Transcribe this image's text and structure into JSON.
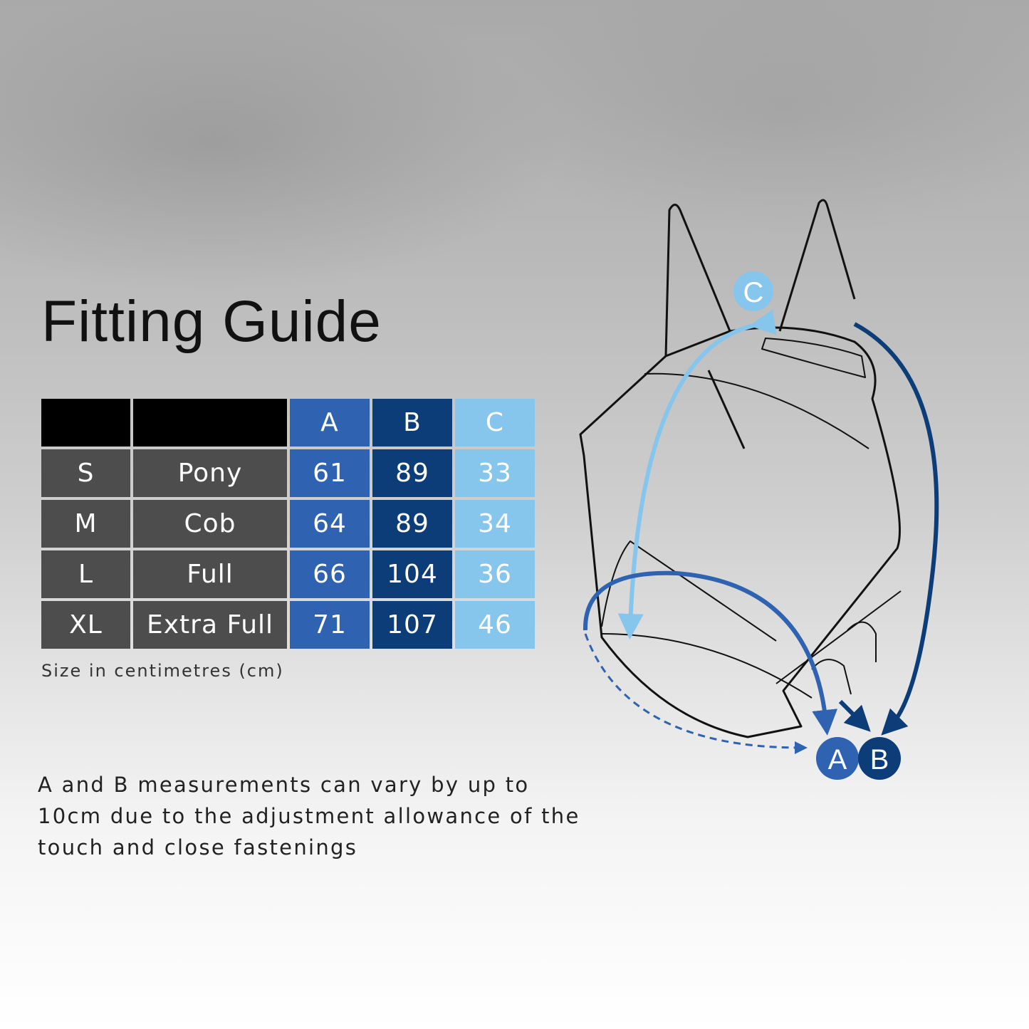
{
  "title": "Fitting Guide",
  "table": {
    "headers": [
      "",
      "",
      "A",
      "B",
      "C"
    ],
    "rows": [
      {
        "size": "S",
        "name": "Pony",
        "a": "61",
        "b": "89",
        "c": "33"
      },
      {
        "size": "M",
        "name": "Cob",
        "a": "64",
        "b": "89",
        "c": "34"
      },
      {
        "size": "L",
        "name": "Full",
        "a": "66",
        "b": "104",
        "c": "36"
      },
      {
        "size": "XL",
        "name": "Extra Full",
        "a": "71",
        "b": "107",
        "c": "46"
      }
    ]
  },
  "unit_note": "Size in centimetres (cm)",
  "description": "A and B measurements can vary by up to 10cm due to the adjustment allowance of the touch and close fastenings",
  "diagram": {
    "labels": {
      "a": "A",
      "b": "B",
      "c": "C"
    },
    "colors": {
      "a": "#2f62b0",
      "b": "#0c3d78",
      "c": "#86c5ec"
    }
  }
}
